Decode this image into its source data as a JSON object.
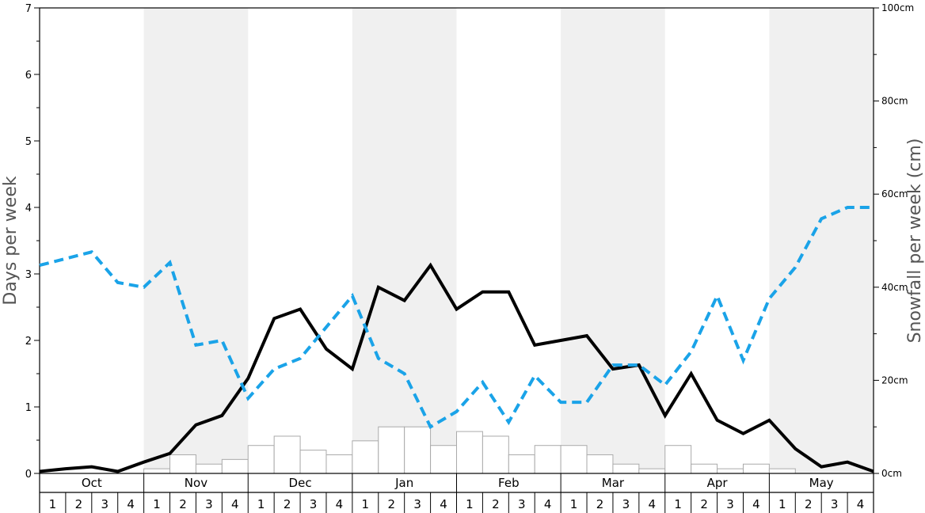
{
  "chart_data": {
    "type": "bar",
    "ylabel": "Days per week",
    "y2label": "Snowfall per week (cm)",
    "ylim": [
      0,
      7
    ],
    "y2lim": [
      0,
      100
    ],
    "yticks": [
      "0",
      "1",
      "2",
      "3",
      "4",
      "5",
      "6",
      "7"
    ],
    "y2ticks": [
      "0cm",
      "20cm",
      "40cm",
      "60cm",
      "80cm",
      "100cm"
    ],
    "months": [
      "Oct",
      "Nov",
      "Dec",
      "Jan",
      "Feb",
      "Mar",
      "Apr",
      "May"
    ],
    "weeks": [
      "1",
      "2",
      "3",
      "4"
    ],
    "colors": {
      "shade": "#f0f0f0",
      "bar_fill": "#ffffff",
      "bar_stroke": "#aaaaaa",
      "solid_line": "#000000",
      "dashed_line": "#1aa3e8"
    },
    "series": [
      {
        "type": "bar",
        "axis": "right",
        "values": [
          0,
          0,
          0,
          0,
          1,
          4,
          2,
          3,
          6,
          8,
          5,
          4,
          7,
          10,
          10,
          6,
          9,
          8,
          4,
          6,
          6,
          4,
          2,
          1,
          6,
          2,
          1,
          2,
          1,
          0,
          0,
          0
        ]
      },
      {
        "type": "line",
        "style": "solid",
        "axis": "left",
        "values": [
          0.03,
          0.07,
          0.1,
          0.03,
          0.17,
          0.3,
          0.73,
          0.87,
          1.43,
          2.33,
          2.47,
          1.87,
          1.57,
          2.8,
          2.6,
          3.13,
          2.47,
          2.73,
          2.73,
          1.93,
          2.0,
          2.07,
          1.57,
          1.63,
          0.87,
          1.5,
          0.8,
          0.6,
          0.8,
          0.37,
          0.1,
          0.17,
          0.03
        ]
      },
      {
        "type": "line",
        "style": "dashed",
        "axis": "left",
        "values": [
          3.13,
          3.23,
          3.33,
          2.87,
          2.8,
          3.17,
          1.93,
          2.0,
          1.13,
          1.57,
          1.73,
          2.2,
          2.67,
          1.73,
          1.5,
          0.7,
          0.93,
          1.37,
          0.77,
          1.47,
          1.07,
          1.07,
          1.63,
          1.63,
          1.33,
          1.83,
          2.67,
          1.7,
          2.63,
          3.1,
          3.83,
          4.0,
          4.0
        ]
      }
    ]
  }
}
